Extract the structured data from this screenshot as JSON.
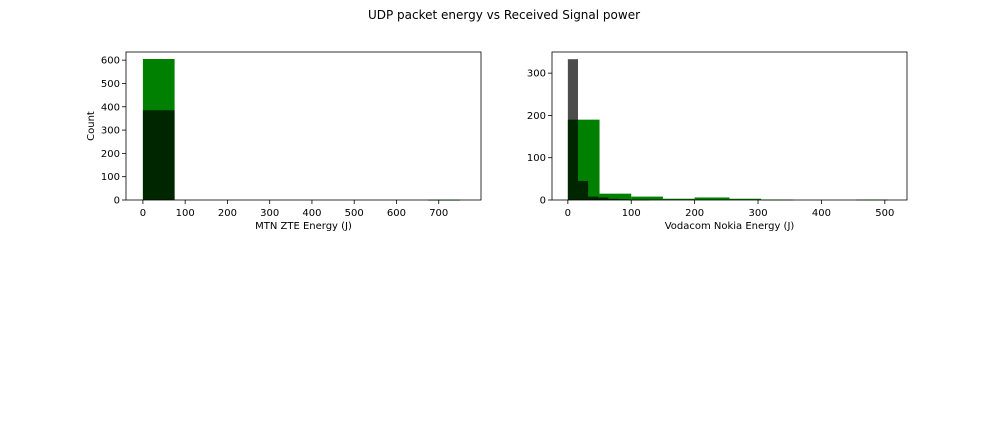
{
  "figure": {
    "title": "UDP packet energy vs Received Signal power"
  },
  "chart_data": [
    {
      "type": "bar",
      "title": "",
      "xlabel": "MTN ZTE Energy (J)",
      "ylabel": "Count",
      "xlim": [
        -40,
        800
      ],
      "ylim": [
        0,
        635
      ],
      "xticks": [
        0,
        100,
        200,
        300,
        400,
        500,
        600,
        700
      ],
      "yticks": [
        0,
        100,
        200,
        300,
        400,
        500,
        600
      ],
      "series": [
        {
          "color": "#008000",
          "opacity": 1.0,
          "bins": [
            {
              "x0": 0,
              "x1": 75,
              "count": 605
            },
            {
              "x0": 75,
              "x1": 150,
              "count": 0
            },
            {
              "x0": 150,
              "x1": 225,
              "count": 0
            },
            {
              "x0": 225,
              "x1": 300,
              "count": 0
            },
            {
              "x0": 300,
              "x1": 375,
              "count": 0
            },
            {
              "x0": 375,
              "x1": 450,
              "count": 0
            },
            {
              "x0": 450,
              "x1": 525,
              "count": 0
            },
            {
              "x0": 525,
              "x1": 600,
              "count": 0
            },
            {
              "x0": 600,
              "x1": 675,
              "count": 0
            },
            {
              "x0": 675,
              "x1": 750,
              "count": 1
            }
          ]
        },
        {
          "color": "#000000",
          "opacity": 0.7,
          "bins": [
            {
              "x0": 0,
              "x1": 75,
              "count": 385
            }
          ]
        }
      ]
    },
    {
      "type": "bar",
      "title": "",
      "xlabel": "Vodacom Nokia Energy (J)",
      "ylabel": "",
      "xlim": [
        -25,
        535
      ],
      "ylim": [
        0,
        350
      ],
      "xticks": [
        0,
        100,
        200,
        300,
        400,
        500
      ],
      "yticks": [
        0,
        100,
        200,
        300
      ],
      "series": [
        {
          "color": "#008000",
          "opacity": 1.0,
          "bins": [
            {
              "x0": 0,
              "x1": 50,
              "count": 190
            },
            {
              "x0": 50,
              "x1": 100,
              "count": 15
            },
            {
              "x0": 100,
              "x1": 150,
              "count": 8
            },
            {
              "x0": 150,
              "x1": 200,
              "count": 3
            },
            {
              "x0": 200,
              "x1": 255,
              "count": 6
            },
            {
              "x0": 255,
              "x1": 305,
              "count": 3
            },
            {
              "x0": 305,
              "x1": 355,
              "count": 1
            },
            {
              "x0": 355,
              "x1": 405,
              "count": 0
            },
            {
              "x0": 405,
              "x1": 455,
              "count": 0
            },
            {
              "x0": 455,
              "x1": 505,
              "count": 1
            }
          ]
        },
        {
          "color": "#000000",
          "opacity": 0.7,
          "bins": [
            {
              "x0": 0,
              "x1": 16,
              "count": 333
            },
            {
              "x0": 16,
              "x1": 32,
              "count": 45
            },
            {
              "x0": 32,
              "x1": 48,
              "count": 8
            },
            {
              "x0": 48,
              "x1": 64,
              "count": 6
            },
            {
              "x0": 64,
              "x1": 80,
              "count": 3
            },
            {
              "x0": 80,
              "x1": 96,
              "count": 2
            },
            {
              "x0": 96,
              "x1": 112,
              "count": 1
            },
            {
              "x0": 112,
              "x1": 128,
              "count": 1
            }
          ]
        }
      ]
    }
  ]
}
